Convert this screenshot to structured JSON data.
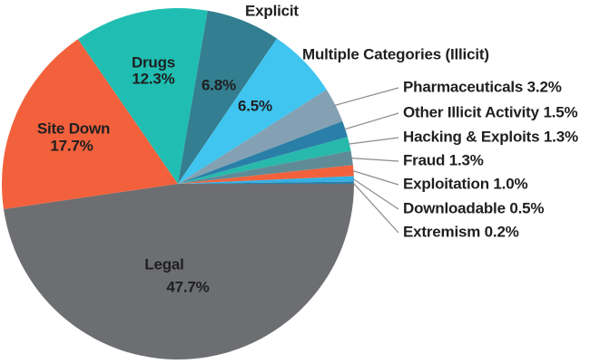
{
  "chart_data": {
    "type": "pie",
    "unit": "%",
    "direction": "clockwise",
    "start_angle_deg": 0,
    "legend_position": "none",
    "text_color": "#1F1F20",
    "callout_line_color": "#8A8C8E",
    "background_color": "#FFFFFF",
    "slices": [
      {
        "label": "Legal",
        "value": 47.7,
        "pct_label": "47.7%",
        "color": "#6C6E71",
        "label_style": "inside"
      },
      {
        "label": "Site Down",
        "value": 17.7,
        "pct_label": "17.7%",
        "color": "#F2613C",
        "label_style": "inside"
      },
      {
        "label": "Drugs",
        "value": 12.3,
        "pct_label": "12.3%",
        "color": "#20BEB2",
        "label_style": "inside"
      },
      {
        "label": "Explicit",
        "value": 6.8,
        "pct_label": "6.8%",
        "color": "#337E90",
        "label_style": "name-outside-pct-inside"
      },
      {
        "label": "Multiple Categories (Illicit)",
        "value": 6.5,
        "pct_label": "6.5%",
        "color": "#3FC5F0",
        "label_style": "name-outside-pct-inside"
      },
      {
        "label": "Pharmaceuticals",
        "value": 3.2,
        "pct_label": "3.2%",
        "color": "#83A1B3",
        "label_style": "callout"
      },
      {
        "label": "Other Illicit Activity",
        "value": 1.5,
        "pct_label": "1.5%",
        "color": "#2A7FA8",
        "label_style": "callout"
      },
      {
        "label": "Hacking & Exploits",
        "value": 1.3,
        "pct_label": "1.3%",
        "color": "#26B9AC",
        "label_style": "callout"
      },
      {
        "label": "Fraud",
        "value": 1.3,
        "pct_label": "1.3%",
        "color": "#5F8B96",
        "label_style": "callout"
      },
      {
        "label": "Exploitation",
        "value": 1.0,
        "pct_label": "1.0%",
        "color": "#F2613C",
        "label_style": "callout"
      },
      {
        "label": "Downloadable",
        "value": 0.5,
        "pct_label": "0.5%",
        "color": "#33B1E4",
        "label_style": "callout"
      },
      {
        "label": "Extremism",
        "value": 0.2,
        "pct_label": "0.2%",
        "color": "#2E7EA6",
        "label_style": "callout"
      }
    ]
  }
}
